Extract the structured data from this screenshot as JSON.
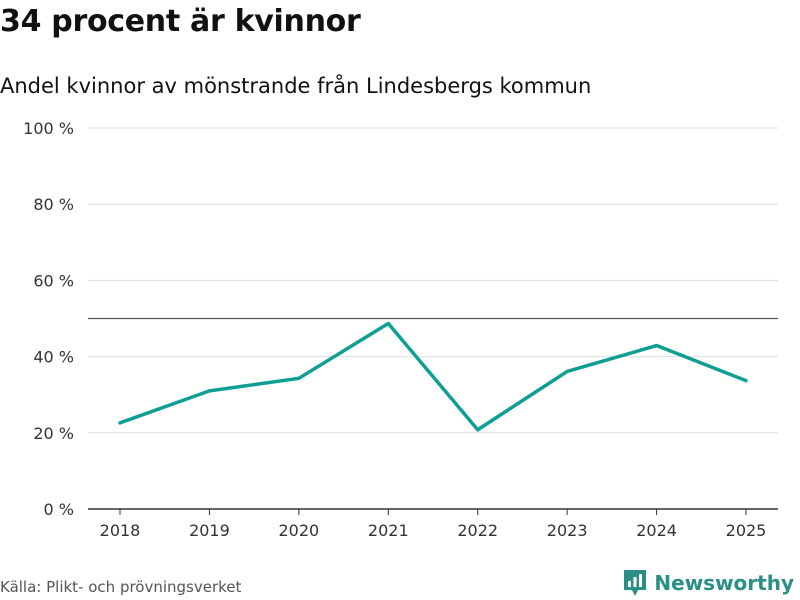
{
  "title": "34 procent är kvinnor",
  "subtitle": "Andel kvinnor av mönstrande från Lindesbergs kommun",
  "source": "Källa: Plikt- och prövningsverket",
  "brand": "Newsworthy",
  "colors": {
    "line": "#0e9e93",
    "grid": "#dddddd",
    "reference": "#555555",
    "text": "#333333",
    "brand": "#2a8f86"
  },
  "chart_data": {
    "type": "line",
    "title": "34 procent är kvinnor",
    "subtitle": "Andel kvinnor av mönstrande från Lindesbergs kommun",
    "xlabel": "",
    "ylabel": "",
    "categories": [
      "2018",
      "2019",
      "2020",
      "2021",
      "2022",
      "2023",
      "2024",
      "2025"
    ],
    "series": [
      {
        "name": "Andel kvinnor",
        "values": [
          22.6,
          31.0,
          34.3,
          48.7,
          20.8,
          36.1,
          42.9,
          33.7
        ]
      }
    ],
    "ylim": [
      0,
      100
    ],
    "yticks": [
      0,
      20,
      40,
      60,
      80,
      100
    ],
    "ytick_labels": [
      "0 %",
      "20 %",
      "40 %",
      "60 %",
      "80 %",
      "100 %"
    ],
    "reference_line": 50,
    "grid": true
  }
}
